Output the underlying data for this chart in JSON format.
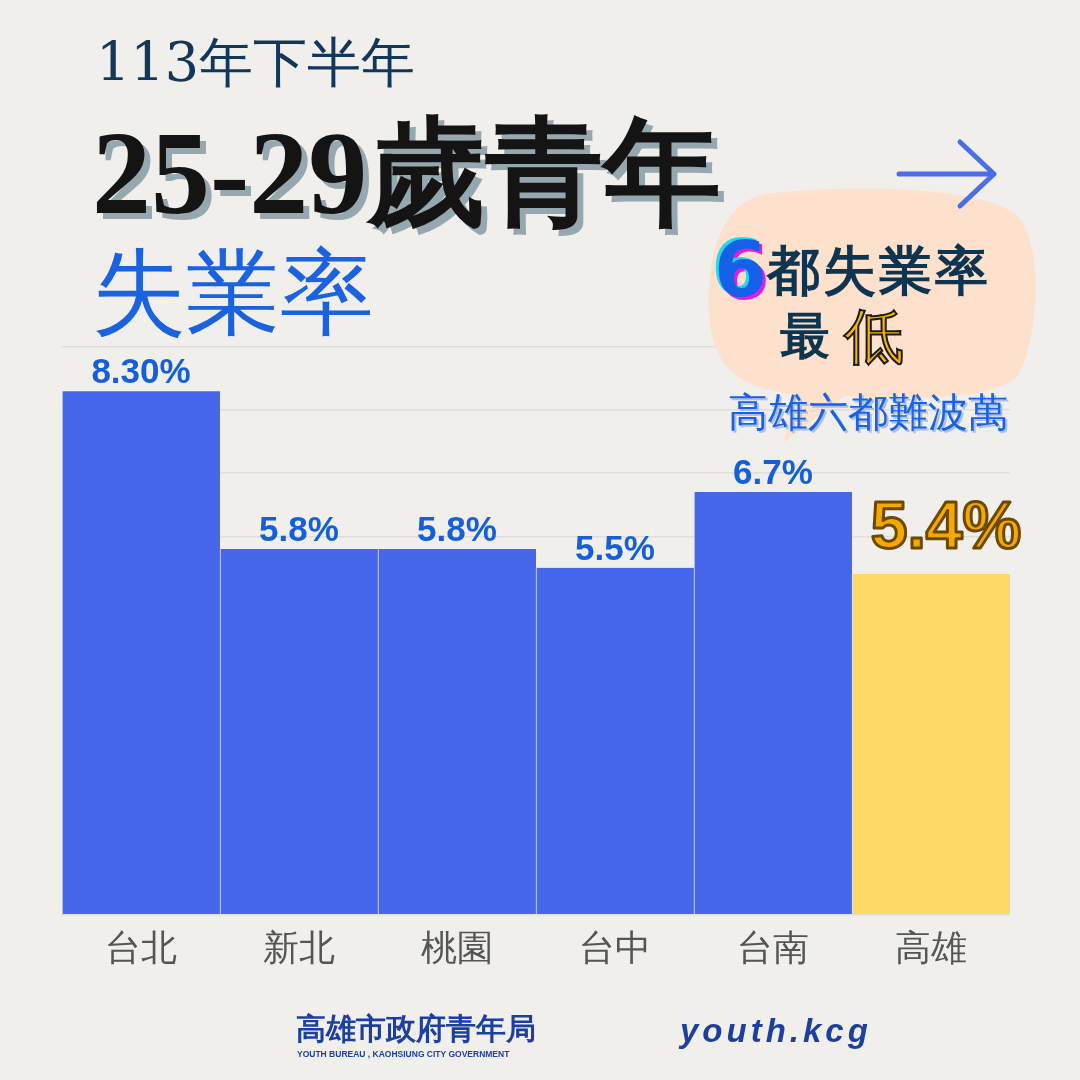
{
  "chart_data": {
    "type": "bar",
    "subtitle": "113年下半年",
    "title": "25-29歲青年失業率",
    "categories": [
      "台北",
      "新北",
      "桃園",
      "台中",
      "台南",
      "高雄"
    ],
    "values": [
      8.3,
      5.8,
      5.8,
      5.5,
      6.7,
      5.4
    ],
    "colors": [
      "#4767ea",
      "#4767ea",
      "#4767ea",
      "#4767ea",
      "#4767ea",
      "#fdd968"
    ],
    "value_labels": [
      "8.30%",
      "5.8%",
      "5.8%",
      "5.5%",
      "6.7%",
      "5.4%"
    ],
    "ylim": [
      0,
      9
    ],
    "grid": "y",
    "tick_labels": "x",
    "annotations": [
      "6都失業率",
      "最低",
      "高雄六都難波萬",
      "高雄市政府青年局",
      "YOUTH BUREAU , KAOHSIUNG CITY GOVERNMENT",
      "youth.kcg"
    ]
  }
}
